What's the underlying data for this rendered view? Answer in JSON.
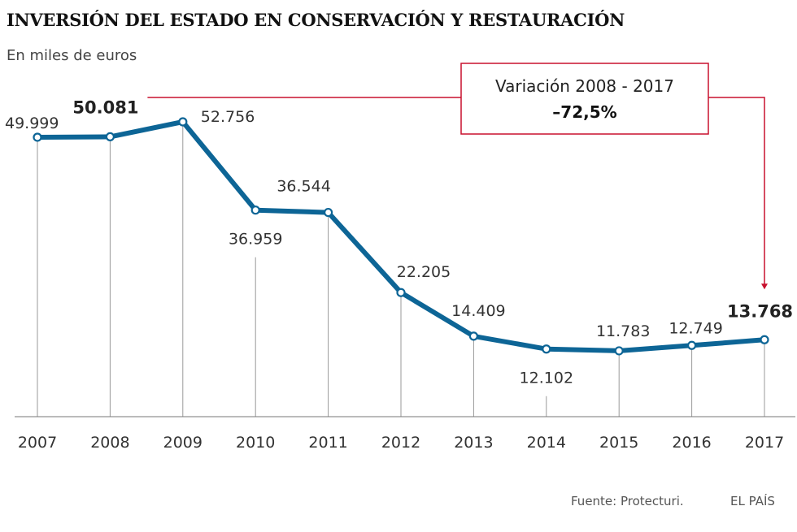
{
  "header": {
    "title": "INVERSIÓN DEL ESTADO EN CONSERVACIÓN Y RESTAURACIÓN",
    "subtitle": "En miles de euros"
  },
  "footer": {
    "source": "Fuente: Protecturi.",
    "brand": "EL PAÍS"
  },
  "colors": {
    "line": "#0d6596",
    "annotation": "#c8102e",
    "guide": "#9a9a9a"
  },
  "chart_data": {
    "type": "line",
    "title": "INVERSIÓN DEL ESTADO EN CONSERVACIÓN Y RESTAURACIÓN",
    "subtitle": "En miles de euros",
    "xlabel": "",
    "ylabel": "",
    "categories": [
      "2007",
      "2008",
      "2009",
      "2010",
      "2011",
      "2012",
      "2013",
      "2014",
      "2015",
      "2016",
      "2017"
    ],
    "series": [
      {
        "values": [
          49999,
          50081,
          52756,
          36959,
          36544,
          22205,
          14409,
          12102,
          11783,
          12749,
          13768
        ],
        "labels": [
          "49.999",
          "50.081",
          "52.756",
          "36.959",
          "36.544",
          "22.205",
          "14.409",
          "12.102",
          "11.783",
          "12.749",
          "13.768"
        ],
        "highlighted": [
          "2008",
          "2017"
        ]
      }
    ],
    "ylim": [
      0,
      52756
    ],
    "grid": false,
    "legend": "none",
    "annotation": {
      "label": "Variación 2008 - 2017",
      "value": "–72,5%",
      "from": "2008",
      "to": "2017"
    }
  }
}
